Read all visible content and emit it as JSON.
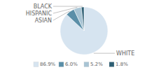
{
  "chart_data": {
    "type": "pie",
    "categories": [
      "WHITE",
      "ASIAN",
      "HISPANIC",
      "BLACK"
    ],
    "values": [
      86.9,
      6.0,
      5.2,
      1.8
    ],
    "value_labels": [
      "86.9%",
      "6.0%",
      "5.2%",
      "1.8%"
    ],
    "colors": [
      "#d6e4f0",
      "#5b8fa8",
      "#a8c4d4",
      "#2e5f74"
    ],
    "legend": "bottom"
  }
}
